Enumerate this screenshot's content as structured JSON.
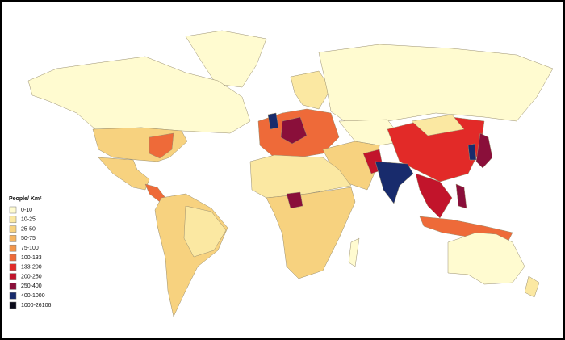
{
  "legend": {
    "title": "People/ Km²",
    "items": [
      {
        "label": "0-10",
        "color": "#fffbd0"
      },
      {
        "label": "10-25",
        "color": "#fbe8a2"
      },
      {
        "label": "25-50",
        "color": "#f7d27f"
      },
      {
        "label": "50-75",
        "color": "#f5b562"
      },
      {
        "label": "75-100",
        "color": "#f2954a"
      },
      {
        "label": "100-133",
        "color": "#ee6a39"
      },
      {
        "label": "133-200",
        "color": "#e22a28"
      },
      {
        "label": "200-250",
        "color": "#c2142b"
      },
      {
        "label": "250-400",
        "color": "#8a0f3a"
      },
      {
        "label": "400-1000",
        "color": "#182b6c"
      },
      {
        "label": "1000-26106",
        "color": "#0b0b1a"
      }
    ]
  }
}
